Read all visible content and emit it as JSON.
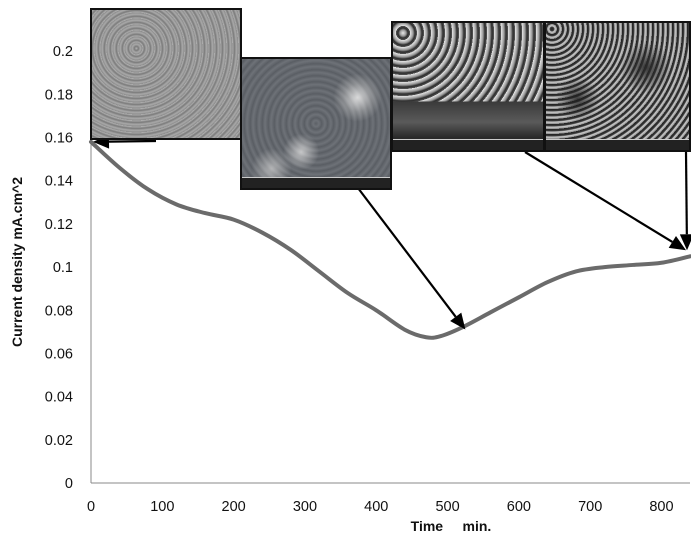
{
  "chart_data": {
    "type": "line",
    "xlabel": "Time     min.",
    "ylabel": "Current density mA.cm^2",
    "xlim": [
      0,
      840
    ],
    "ylim": [
      0,
      0.22
    ],
    "x_ticks": [
      0,
      100,
      200,
      300,
      400,
      500,
      600,
      700,
      800
    ],
    "y_ticks": [
      0,
      0.02,
      0.04,
      0.06,
      0.08,
      0.1,
      0.12,
      0.14,
      0.16,
      0.18,
      0.2
    ],
    "y_tick_labels": [
      "0",
      "0.02",
      "0.04",
      "0.06",
      "0.08",
      "0.1",
      "0.12",
      "0.14",
      "0.16",
      "0.18",
      "0.2"
    ],
    "grid": false,
    "series": [
      {
        "color": "#6b6b6b",
        "x": [
          0,
          40,
          80,
          120,
          160,
          200,
          240,
          280,
          320,
          360,
          400,
          440,
          470,
          490,
          520,
          560,
          600,
          640,
          680,
          720,
          760,
          800,
          840
        ],
        "y": [
          0.158,
          0.146,
          0.136,
          0.129,
          0.125,
          0.122,
          0.116,
          0.108,
          0.098,
          0.088,
          0.08,
          0.071,
          0.0675,
          0.068,
          0.072,
          0.079,
          0.086,
          0.093,
          0.098,
          0.1,
          0.101,
          0.102,
          0.105
        ]
      }
    ],
    "insets": [
      {
        "name": "inset-sem-start",
        "color": "#9a9a9a",
        "points_to": [
          0,
          0.158
        ]
      },
      {
        "name": "inset-sem-early",
        "color": "#6f7479",
        "points_to": null
      },
      {
        "name": "inset-sem-minimum",
        "color": "#55585c",
        "points_to": [
          525,
          0.072
        ]
      },
      {
        "name": "inset-sem-end",
        "color": "#4a4a4a",
        "points_to": [
          840,
          0.105
        ]
      }
    ]
  }
}
